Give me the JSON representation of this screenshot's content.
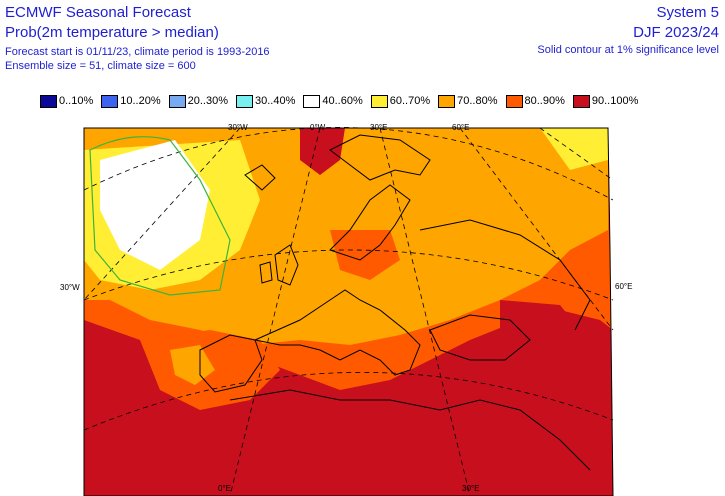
{
  "header": {
    "title_left": "ECMWF Seasonal Forecast",
    "subtitle_left": "Prob(2m temperature > median)",
    "line3_left": "Forecast start is 01/11/23, climate period is 1993-2016",
    "line4_left": "Ensemble size = 51, climate size = 600",
    "title_right": "System 5",
    "subtitle_right": "DJF 2023/24",
    "line3_right": "Solid contour at 1% significance level"
  },
  "legend": [
    {
      "label": "0..10%",
      "color": "#0a0a96"
    },
    {
      "label": "10..20%",
      "color": "#3c64f0"
    },
    {
      "label": "20..30%",
      "color": "#78aaf0"
    },
    {
      "label": "30..40%",
      "color": "#78f0f0"
    },
    {
      "label": "40..60%",
      "color": "#ffffff"
    },
    {
      "label": "60..70%",
      "color": "#ffee33"
    },
    {
      "label": "70..80%",
      "color": "#ffa500"
    },
    {
      "label": "80..90%",
      "color": "#ff5a00"
    },
    {
      "label": "90..100%",
      "color": "#c80f1e"
    }
  ],
  "map_labels": {
    "top_30w": "30°W",
    "top_0": "0°W",
    "top_30e": "30°E",
    "top_60e": "60°E",
    "left_30w": "30°W",
    "right_60e": "60°E",
    "bottom_0": "0°E",
    "bottom_30e": "30°E"
  }
}
